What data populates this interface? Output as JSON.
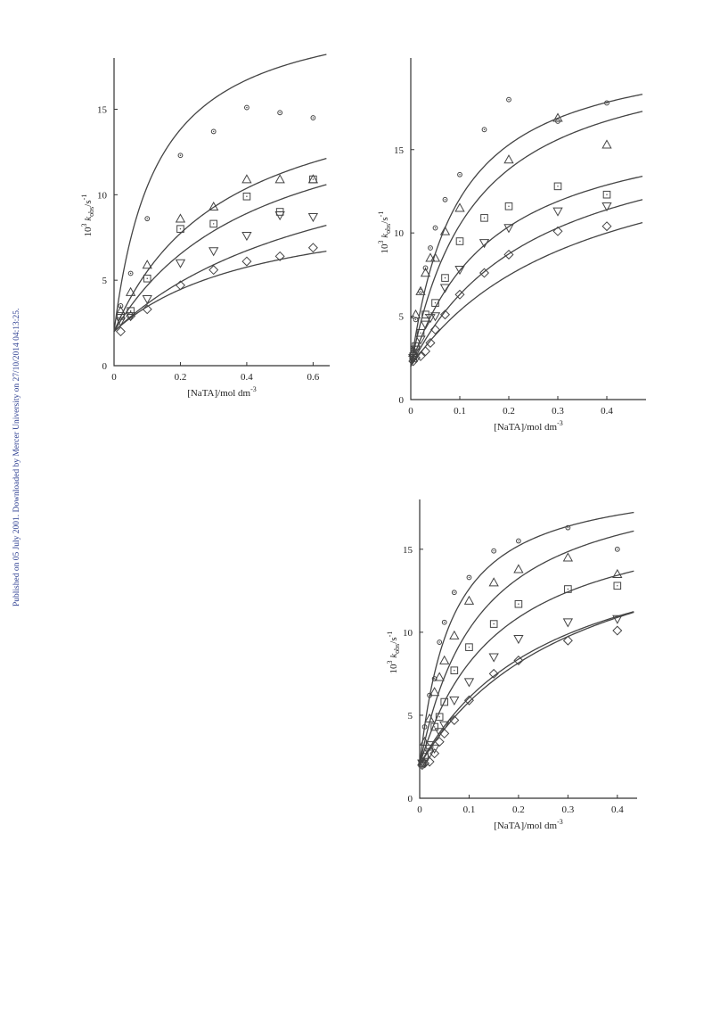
{
  "side_note": "Published on 05 July 2001. Downloaded by Mercer University on 27/10/2014 04:13:25.",
  "chart_data": [
    {
      "type": "scatter",
      "xlim": [
        0,
        0.65
      ],
      "ylim": [
        0,
        18
      ],
      "xticks": [
        0,
        0.2,
        0.4,
        0.6
      ],
      "yticks": [
        0,
        5,
        10,
        15
      ],
      "xtick_labels": [
        "0",
        "0.2",
        "0.4",
        "0.6"
      ],
      "ytick_labels": [
        "0",
        "5",
        "10",
        "15"
      ],
      "ylabel_parts": [
        "10",
        "3",
        " k",
        "obs",
        "/s",
        "-1"
      ],
      "xlabel_parts": [
        "[NaTA]/mol dm",
        "-3"
      ],
      "series": [
        {
          "marker": "circle",
          "x": [
            0.02,
            0.05,
            0.1,
            0.2,
            0.3,
            0.4,
            0.5,
            0.6
          ],
          "y": [
            3.5,
            5.4,
            8.6,
            12.3,
            13.7,
            15.1,
            14.8,
            14.5
          ],
          "fit": [
            2.0,
            19.5,
            0.13
          ]
        },
        {
          "marker": "triangle",
          "x": [
            0.02,
            0.05,
            0.1,
            0.2,
            0.3,
            0.4,
            0.5,
            0.6
          ],
          "y": [
            3.2,
            4.3,
            5.9,
            8.6,
            9.3,
            10.9,
            10.9,
            10.9
          ],
          "fit": [
            2.0,
            15.5,
            0.34
          ]
        },
        {
          "marker": "square",
          "x": [
            0.02,
            0.05,
            0.1,
            0.2,
            0.3,
            0.4,
            0.5,
            0.6
          ],
          "y": [
            2.9,
            3.2,
            5.1,
            8.0,
            8.3,
            9.9,
            9.0,
            10.9
          ],
          "fit": [
            2.0,
            14.5,
            0.44
          ]
        },
        {
          "marker": "triangle-down",
          "x": [
            0.02,
            0.05,
            0.1,
            0.2,
            0.3,
            0.4,
            0.5,
            0.6
          ],
          "y": [
            2.6,
            2.9,
            3.9,
            6.0,
            6.7,
            7.6,
            8.8,
            8.7
          ],
          "fit": [
            2.0,
            13.0,
            0.7
          ]
        },
        {
          "marker": "diamond",
          "x": [
            0.02,
            0.05,
            0.1,
            0.2,
            0.3,
            0.4,
            0.5,
            0.6
          ],
          "y": [
            2.0,
            2.9,
            3.3,
            4.7,
            5.6,
            6.1,
            6.4,
            6.9
          ],
          "fit": [
            2.0,
            8.0,
            0.45
          ]
        }
      ]
    },
    {
      "type": "scatter",
      "xlim": [
        0,
        0.48
      ],
      "ylim": [
        0,
        20.5
      ],
      "xticks": [
        0,
        0.1,
        0.2,
        0.3,
        0.4
      ],
      "yticks": [
        0,
        5,
        10,
        15
      ],
      "xtick_labels": [
        "0",
        "0.1",
        "0.2",
        "0.3",
        "0.4"
      ],
      "ytick_labels": [
        "0",
        "5",
        "10",
        "15"
      ],
      "ylabel_parts": [
        "10",
        "3",
        " k",
        "obs",
        "/s",
        "-1"
      ],
      "xlabel_parts": [
        "[NaTA]/mol dm",
        "-3"
      ],
      "series": [
        {
          "marker": "circle",
          "x": [
            0.005,
            0.01,
            0.02,
            0.03,
            0.04,
            0.05,
            0.07,
            0.1,
            0.15,
            0.2,
            0.3,
            0.4
          ],
          "y": [
            3.0,
            4.8,
            6.5,
            7.9,
            9.1,
            10.3,
            12.0,
            13.5,
            16.2,
            18.0,
            16.7,
            17.8
          ],
          "fit": [
            2.0,
            19.6,
            0.095
          ]
        },
        {
          "marker": "triangle",
          "x": [
            0.005,
            0.01,
            0.02,
            0.03,
            0.04,
            0.05,
            0.07,
            0.1,
            0.2,
            0.3,
            0.4
          ],
          "y": [
            2.8,
            5.1,
            6.5,
            7.6,
            8.5,
            8.5,
            10.1,
            11.5,
            14.4,
            16.9,
            15.3
          ],
          "fit": [
            2.0,
            19.5,
            0.13
          ]
        },
        {
          "marker": "square",
          "x": [
            0.005,
            0.01,
            0.02,
            0.03,
            0.05,
            0.07,
            0.1,
            0.15,
            0.2,
            0.3,
            0.4
          ],
          "y": [
            2.6,
            3.2,
            4.0,
            5.1,
            5.8,
            7.3,
            9.5,
            10.9,
            11.6,
            12.8,
            12.3
          ],
          "fit": [
            2.0,
            15.5,
            0.17
          ]
        },
        {
          "marker": "triangle-down",
          "x": [
            0.005,
            0.01,
            0.02,
            0.03,
            0.04,
            0.05,
            0.07,
            0.1,
            0.15,
            0.2,
            0.3,
            0.4
          ],
          "y": [
            2.5,
            3.0,
            3.6,
            4.5,
            4.9,
            5.0,
            6.7,
            7.8,
            9.4,
            10.3,
            11.3,
            11.6
          ],
          "fit": [
            2.0,
            15.5,
            0.26
          ]
        },
        {
          "marker": "diamond",
          "x": [
            0.005,
            0.01,
            0.02,
            0.03,
            0.04,
            0.05,
            0.07,
            0.1,
            0.15,
            0.2,
            0.3,
            0.4
          ],
          "y": [
            2.3,
            2.5,
            2.6,
            2.9,
            3.4,
            4.2,
            5.1,
            6.3,
            7.6,
            8.7,
            10.1,
            10.4
          ],
          "fit": [
            2.0,
            15.0,
            0.35
          ]
        }
      ]
    },
    {
      "type": "scatter",
      "xlim": [
        0,
        0.44
      ],
      "ylim": [
        0,
        18
      ],
      "xticks": [
        0,
        0.1,
        0.2,
        0.3,
        0.4
      ],
      "yticks": [
        0,
        5,
        10,
        15
      ],
      "xtick_labels": [
        "0",
        "0.1",
        "0.2",
        "0.3",
        "0.4"
      ],
      "ytick_labels": [
        "0",
        "5",
        "10",
        "15"
      ],
      "ylabel_parts": [
        "10",
        "3",
        " k",
        "obs",
        "/s",
        "-1"
      ],
      "xlabel_parts": [
        "[NaTA]/mol dm",
        "-3"
      ],
      "series": [
        {
          "marker": "circle",
          "x": [
            0.005,
            0.01,
            0.02,
            0.03,
            0.04,
            0.05,
            0.07,
            0.1,
            0.15,
            0.2,
            0.3,
            0.4
          ],
          "y": [
            2.3,
            4.3,
            6.2,
            7.2,
            9.4,
            10.6,
            12.4,
            13.3,
            14.9,
            15.5,
            16.3,
            15.0
          ],
          "fit": [
            2.0,
            17.5,
            0.065
          ]
        },
        {
          "marker": "triangle",
          "x": [
            0.005,
            0.01,
            0.02,
            0.03,
            0.04,
            0.05,
            0.07,
            0.1,
            0.15,
            0.2,
            0.3,
            0.4
          ],
          "y": [
            2.2,
            3.4,
            4.8,
            6.4,
            7.3,
            8.3,
            9.8,
            11.9,
            13.0,
            13.8,
            14.5,
            13.5
          ],
          "fit": [
            2.0,
            18.0,
            0.12
          ]
        },
        {
          "marker": "square",
          "x": [
            0.005,
            0.01,
            0.02,
            0.03,
            0.04,
            0.05,
            0.07,
            0.1,
            0.15,
            0.2,
            0.3,
            0.4
          ],
          "y": [
            2.1,
            2.5,
            3.2,
            4.3,
            4.9,
            5.8,
            7.7,
            9.1,
            10.5,
            11.7,
            12.6,
            12.8
          ],
          "fit": [
            2.0,
            16.0,
            0.16
          ]
        },
        {
          "marker": "triangle-down",
          "x": [
            0.005,
            0.01,
            0.02,
            0.03,
            0.04,
            0.05,
            0.07,
            0.1,
            0.15,
            0.2,
            0.3,
            0.4
          ],
          "y": [
            2.1,
            2.2,
            2.7,
            3.0,
            4.0,
            4.4,
            5.9,
            7.0,
            8.5,
            9.6,
            10.6,
            10.8
          ],
          "fit": [
            2.0,
            15.0,
            0.27
          ]
        },
        {
          "marker": "diamond",
          "x": [
            0.005,
            0.01,
            0.02,
            0.03,
            0.04,
            0.05,
            0.07,
            0.1,
            0.15,
            0.2,
            0.3,
            0.4
          ],
          "y": [
            2.0,
            2.1,
            2.2,
            2.7,
            3.4,
            3.9,
            4.7,
            5.9,
            7.5,
            8.3,
            9.5,
            10.1
          ],
          "fit": [
            2.0,
            16.0,
            0.32
          ]
        }
      ]
    }
  ]
}
